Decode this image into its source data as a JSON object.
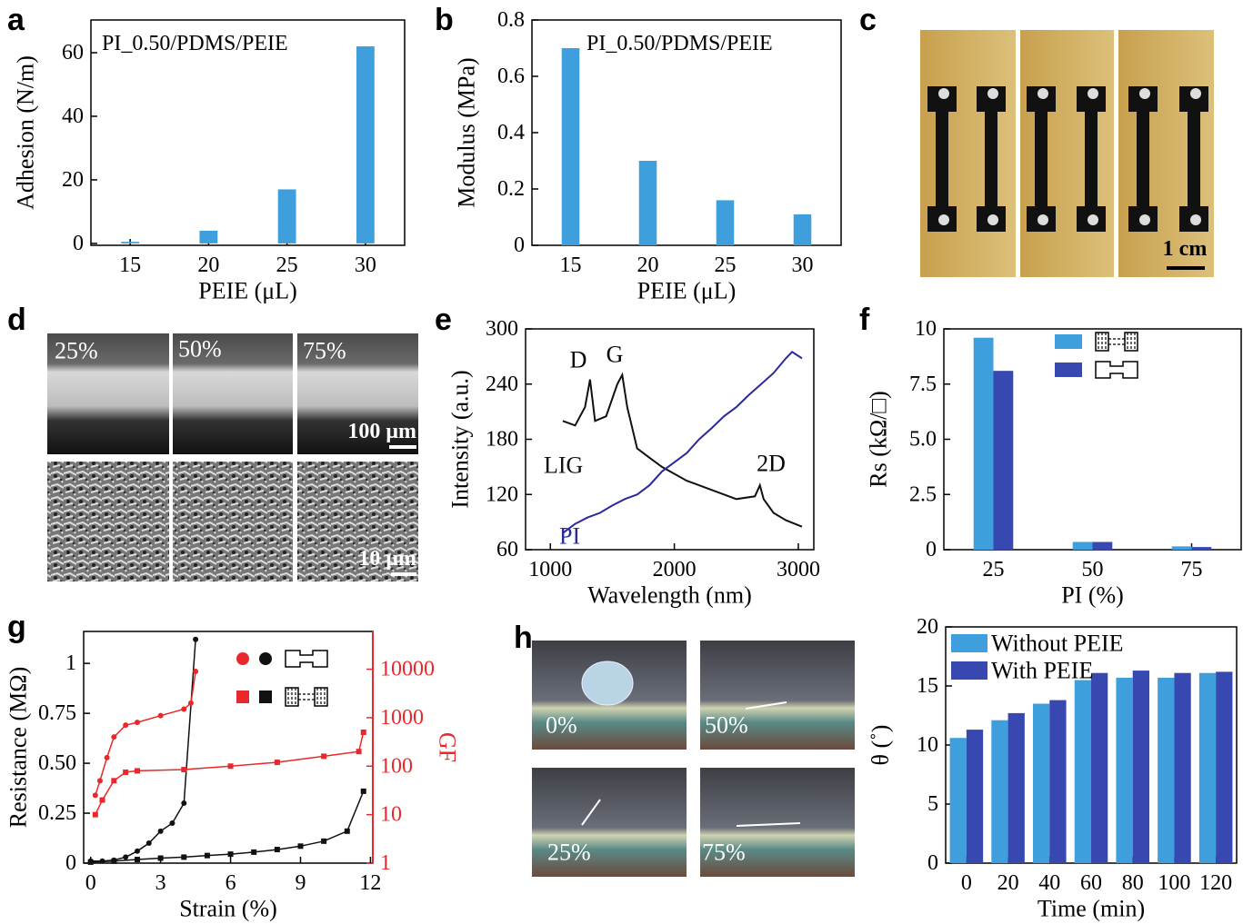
{
  "chart_data": [
    {
      "panel": "a",
      "type": "bar",
      "annotation": "PI_0.50/PDMS/PEIE",
      "categories": [
        "15",
        "20",
        "25",
        "30"
      ],
      "values": [
        0.5,
        4,
        17,
        62
      ],
      "color": "#3f9fdc",
      "x_label": "PEIE (μL)",
      "y_label": "Adhesion (N/m)",
      "ylim": [
        -0.6,
        70.3
      ],
      "yticks": [
        0,
        20,
        40,
        60
      ]
    },
    {
      "panel": "b",
      "type": "bar",
      "annotation": "PI_0.50/PDMS/PEIE",
      "categories": [
        "15",
        "20",
        "25",
        "30"
      ],
      "values": [
        0.7,
        0.3,
        0.16,
        0.11
      ],
      "color": "#3f9fdc",
      "x_label": "PEIE (μL)",
      "y_label": "Modulus (MPa)",
      "ylim": [
        0,
        0.8
      ],
      "yticks": [
        0,
        0.2,
        0.4,
        0.6,
        0.8
      ]
    },
    {
      "panel": "e",
      "type": "line",
      "x_label": "Wavelength (nm)",
      "y_label": "Intensity (a.u.)",
      "xlim": [
        800,
        3125
      ],
      "xticks": [
        1000,
        2000,
        3000
      ],
      "ylim": [
        60,
        300
      ],
      "yticks": [
        60,
        120,
        180,
        240,
        300
      ],
      "peak_labels": [
        "D",
        "G",
        "2D"
      ],
      "series": [
        {
          "name": "LIG",
          "color": "#111111",
          "x": [
            1100,
            1200,
            1280,
            1320,
            1360,
            1450,
            1540,
            1580,
            1620,
            1700,
            1800,
            1900,
            2100,
            2300,
            2500,
            2650,
            2690,
            2720,
            2800,
            2900,
            3030
          ],
          "values": [
            200,
            195,
            215,
            245,
            200,
            205,
            240,
            250,
            215,
            170,
            160,
            150,
            135,
            125,
            115,
            118,
            130,
            115,
            100,
            92,
            85
          ]
        },
        {
          "name": "PI",
          "color": "#2a2a9a",
          "x": [
            1100,
            1200,
            1300,
            1400,
            1500,
            1600,
            1700,
            1800,
            1900,
            2000,
            2100,
            2200,
            2300,
            2400,
            2500,
            2600,
            2700,
            2800,
            2900,
            2950,
            3030
          ],
          "values": [
            78,
            88,
            95,
            100,
            108,
            115,
            120,
            130,
            145,
            155,
            165,
            180,
            192,
            205,
            215,
            228,
            240,
            252,
            268,
            275,
            268
          ]
        }
      ]
    },
    {
      "panel": "f",
      "type": "bar",
      "x_label": "PI (%)",
      "y_label": "Rs (kΩ/□)",
      "categories": [
        "25",
        "50",
        "75"
      ],
      "series": [
        {
          "color": "#3f9fdc",
          "values": [
            9.6,
            0.35,
            0.15
          ]
        },
        {
          "color": "#3748b0",
          "values": [
            8.1,
            0.35,
            0.12
          ]
        }
      ],
      "ylim": [
        0,
        10
      ],
      "yticks": [
        0,
        2.5,
        {
          "value": 5,
          "label": "5.0"
        },
        7.5,
        10
      ]
    },
    {
      "panel": "g",
      "type": "line",
      "x_label": "Strain (%)",
      "y_label": "Resistance (MΩ)",
      "y2_label": "GF",
      "xlim": [
        -0.3,
        12.1
      ],
      "xticks": [
        0,
        3,
        6,
        9,
        12
      ],
      "ylim": [
        0,
        1.16
      ],
      "yticks": [
        0,
        0.25,
        {
          "value": 0.5,
          "label": "0.50"
        },
        0.75,
        1
      ],
      "y2lim": [
        1,
        60000
      ],
      "y2ticks": [
        1,
        10,
        100,
        1000,
        10000
      ],
      "y2scale": "log",
      "y2color": "#e8282a",
      "series": [
        {
          "color": "#111111",
          "marker": "circle",
          "x": [
            0,
            0.5,
            1,
            1.5,
            2,
            2.5,
            3,
            3.5,
            4,
            4.5
          ],
          "values": [
            0.01,
            0.01,
            0.015,
            0.03,
            0.06,
            0.1,
            0.16,
            0.2,
            0.3,
            1.12
          ]
        },
        {
          "color": "#111111",
          "marker": "square",
          "x": [
            0,
            1,
            2,
            3,
            4,
            5,
            6,
            7,
            8,
            9,
            10,
            11,
            11.7
          ],
          "values": [
            0.005,
            0.01,
            0.018,
            0.025,
            0.03,
            0.038,
            0.045,
            0.055,
            0.068,
            0.085,
            0.11,
            0.16,
            0.36
          ]
        },
        {
          "color": "#e8282a",
          "marker": "circle",
          "axis": "y2",
          "x": [
            0.2,
            0.4,
            0.7,
            1,
            1.5,
            2,
            3,
            4,
            4.3,
            4.5
          ],
          "values": [
            25,
            50,
            150,
            400,
            700,
            800,
            1100,
            1500,
            2000,
            9000
          ]
        },
        {
          "color": "#e8282a",
          "marker": "square",
          "axis": "y2",
          "x": [
            0.2,
            0.5,
            1,
            1.5,
            2,
            4,
            6,
            8,
            10,
            11.5,
            11.7
          ],
          "values": [
            10,
            20,
            50,
            75,
            80,
            85,
            100,
            120,
            160,
            200,
            500
          ]
        }
      ]
    },
    {
      "type": "bar",
      "x_label": "Time (min)",
      "y_label": "θ (˚)",
      "categories": [
        "0",
        "20",
        "40",
        "60",
        "80",
        "100",
        "120"
      ],
      "series": [
        {
          "name": "Without PEIE",
          "color": "#3f9fdc",
          "values": [
            10.6,
            12.1,
            13.5,
            15.5,
            15.7,
            15.7,
            16.1
          ]
        },
        {
          "name": "With PEIE",
          "color": "#3748b0",
          "values": [
            11.3,
            12.7,
            13.8,
            16.1,
            16.3,
            16.1,
            16.2
          ]
        }
      ],
      "legend": "top-left",
      "ylim": [
        0,
        20
      ],
      "yticks": [
        0,
        5,
        10,
        15,
        20
      ]
    }
  ],
  "photos": {
    "c": {
      "panel": "c",
      "scale_bar": "1 cm"
    },
    "d": {
      "panel": "d",
      "labels": [
        "25%",
        "50%",
        "75%"
      ],
      "scale_bars": [
        "100 μm",
        "10 μm"
      ]
    },
    "h": {
      "panel": "h",
      "labels": [
        "0%",
        "50%",
        "25%",
        "75%"
      ]
    }
  }
}
